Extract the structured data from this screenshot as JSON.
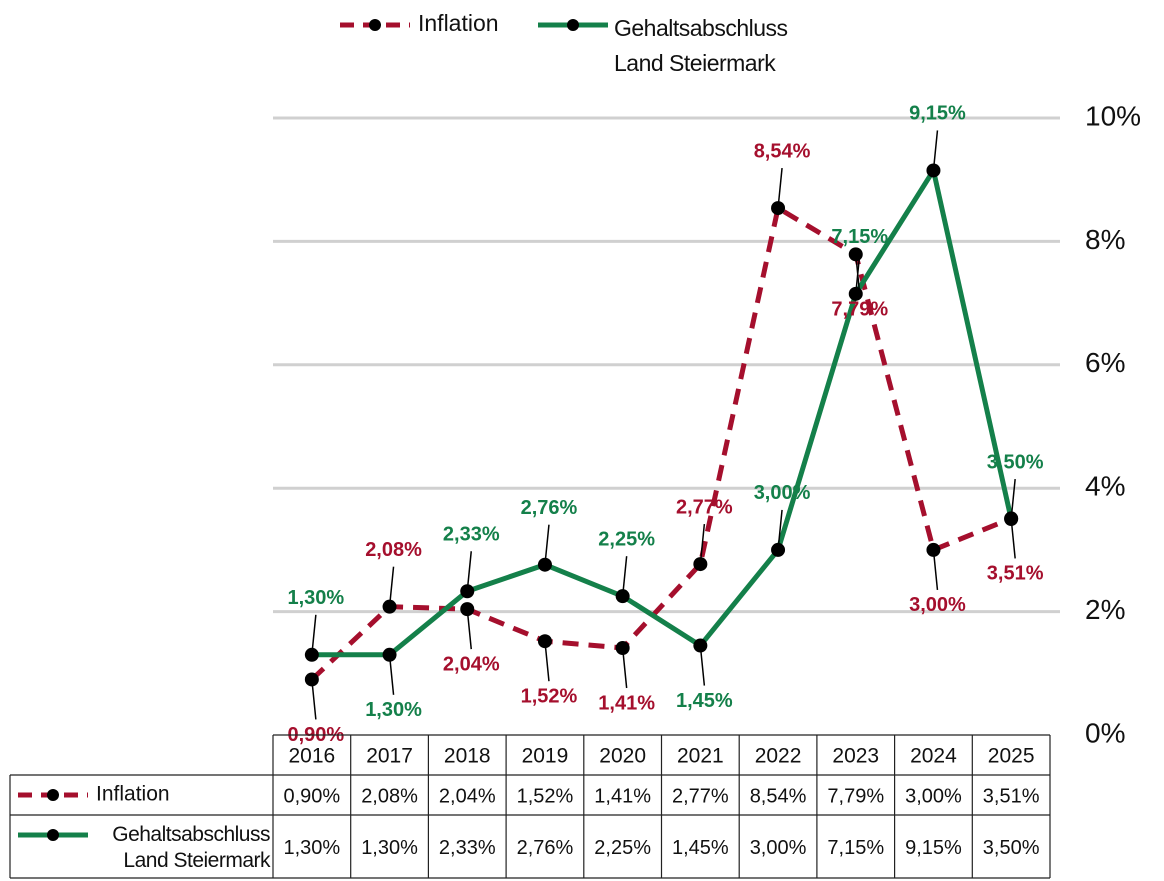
{
  "chart_data": {
    "type": "line",
    "categories": [
      "2016",
      "2017",
      "2018",
      "2019",
      "2020",
      "2021",
      "2022",
      "2023",
      "2024",
      "2025"
    ],
    "series": [
      {
        "name": "Inflation",
        "color": "#a50f2d",
        "dash": true,
        "values": [
          0.9,
          2.08,
          2.04,
          1.52,
          1.41,
          2.77,
          8.54,
          7.79,
          3.0,
          3.51
        ],
        "value_labels": [
          "0,90%",
          "2,08%",
          "2,04%",
          "1,52%",
          "1,41%",
          "2,77%",
          "8,54%",
          "7,79%",
          "3,00%",
          "3,51%"
        ]
      },
      {
        "name": "Gehaltsabschluss Land Steiermark",
        "color": "#14804a",
        "dash": false,
        "values": [
          1.3,
          1.3,
          2.33,
          2.76,
          2.25,
          1.45,
          3.0,
          7.15,
          9.15,
          3.5
        ],
        "value_labels": [
          "1,30%",
          "1,30%",
          "2,33%",
          "2,76%",
          "2,25%",
          "1,45%",
          "3,00%",
          "7,15%",
          "9,15%",
          "3,50%"
        ]
      }
    ],
    "ylim": [
      0,
      10
    ],
    "yticks": [
      {
        "value": 0,
        "label": "0%"
      },
      {
        "value": 2,
        "label": "2%"
      },
      {
        "value": 4,
        "label": "4%"
      },
      {
        "value": 6,
        "label": "6%"
      },
      {
        "value": 8,
        "label": "8%"
      },
      {
        "value": 10,
        "label": "10%"
      }
    ],
    "grid": true,
    "legend": "top",
    "data_table": true
  }
}
